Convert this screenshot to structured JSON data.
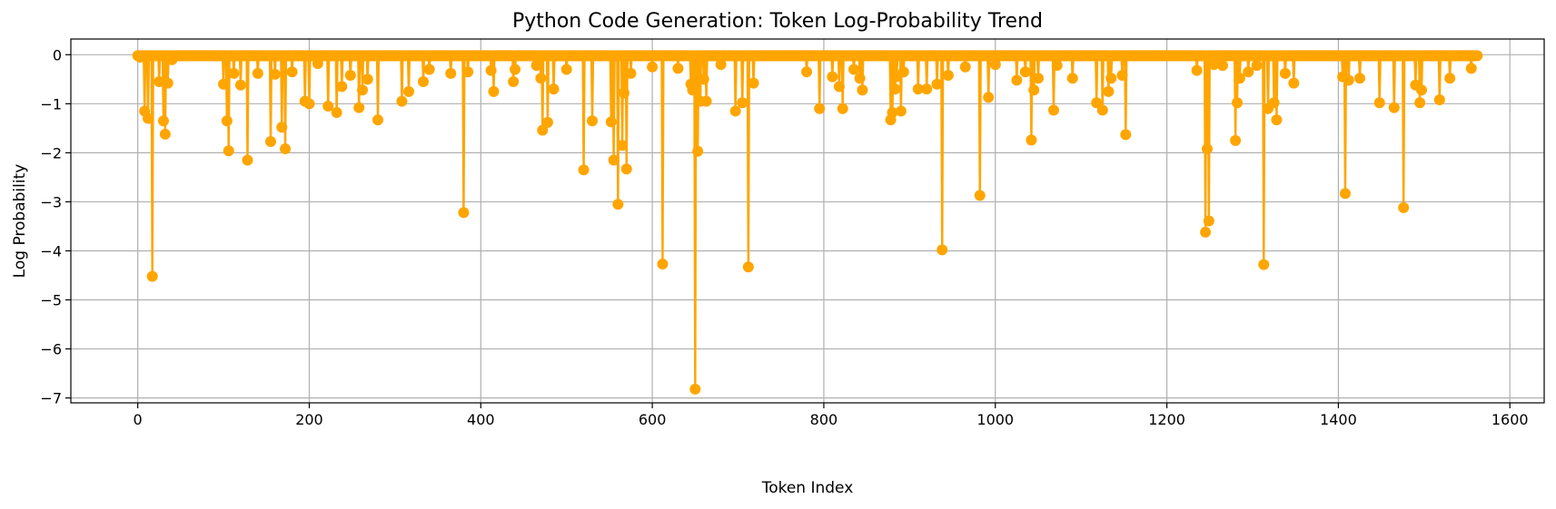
{
  "chart_data": {
    "type": "line",
    "title": "Python Code Generation: Token Log-Probability Trend",
    "xlabel": "Token Index",
    "ylabel": "Log Probability",
    "xlim": [
      -78,
      1640
    ],
    "ylim": [
      -7.1,
      0.32
    ],
    "xticks": [
      0,
      200,
      400,
      600,
      800,
      1000,
      1200,
      1400,
      1600
    ],
    "yticks": [
      0,
      -1,
      -2,
      -3,
      -4,
      -5,
      -6,
      -7
    ],
    "grid": true,
    "series": [
      {
        "color": "#ffa500",
        "marker": "circle",
        "n_points": 1563,
        "baseline": -0.02,
        "dips": [
          [
            3,
            -0.05
          ],
          [
            8,
            -1.15
          ],
          [
            12,
            -1.3
          ],
          [
            17,
            -4.52
          ],
          [
            25,
            -0.55
          ],
          [
            30,
            -1.35
          ],
          [
            32,
            -1.62
          ],
          [
            35,
            -0.58
          ],
          [
            40,
            -0.1
          ],
          [
            100,
            -0.6
          ],
          [
            104,
            -1.35
          ],
          [
            106,
            -1.96
          ],
          [
            112,
            -0.38
          ],
          [
            120,
            -0.62
          ],
          [
            128,
            -2.15
          ],
          [
            140,
            -0.38
          ],
          [
            155,
            -1.77
          ],
          [
            160,
            -0.4
          ],
          [
            168,
            -1.48
          ],
          [
            172,
            -1.92
          ],
          [
            180,
            -0.35
          ],
          [
            195,
            -0.95
          ],
          [
            200,
            -1.0
          ],
          [
            210,
            -0.18
          ],
          [
            222,
            -1.05
          ],
          [
            232,
            -1.18
          ],
          [
            238,
            -0.65
          ],
          [
            248,
            -0.42
          ],
          [
            258,
            -1.08
          ],
          [
            262,
            -0.72
          ],
          [
            268,
            -0.5
          ],
          [
            280,
            -1.33
          ],
          [
            308,
            -0.95
          ],
          [
            316,
            -0.75
          ],
          [
            333,
            -0.55
          ],
          [
            340,
            -0.3
          ],
          [
            365,
            -0.38
          ],
          [
            380,
            -3.22
          ],
          [
            385,
            -0.35
          ],
          [
            412,
            -0.32
          ],
          [
            415,
            -0.75
          ],
          [
            438,
            -0.55
          ],
          [
            440,
            -0.3
          ],
          [
            465,
            -0.22
          ],
          [
            470,
            -0.48
          ],
          [
            472,
            -1.54
          ],
          [
            478,
            -1.38
          ],
          [
            485,
            -0.7
          ],
          [
            500,
            -0.3
          ],
          [
            520,
            -2.35
          ],
          [
            530,
            -1.35
          ],
          [
            552,
            -1.37
          ],
          [
            555,
            -2.15
          ],
          [
            560,
            -3.05
          ],
          [
            565,
            -1.85
          ],
          [
            567,
            -0.78
          ],
          [
            570,
            -2.33
          ],
          [
            575,
            -0.38
          ],
          [
            600,
            -0.25
          ],
          [
            612,
            -4.27
          ],
          [
            630,
            -0.28
          ],
          [
            645,
            -0.6
          ],
          [
            647,
            -0.72
          ],
          [
            650,
            -6.82
          ],
          [
            653,
            -1.97
          ],
          [
            656,
            -0.95
          ],
          [
            660,
            -0.5
          ],
          [
            663,
            -0.95
          ],
          [
            680,
            -0.2
          ],
          [
            697,
            -1.15
          ],
          [
            705,
            -0.98
          ],
          [
            712,
            -4.33
          ],
          [
            718,
            -0.58
          ],
          [
            780,
            -0.35
          ],
          [
            795,
            -1.1
          ],
          [
            810,
            -0.45
          ],
          [
            818,
            -0.65
          ],
          [
            822,
            -1.1
          ],
          [
            835,
            -0.3
          ],
          [
            842,
            -0.48
          ],
          [
            845,
            -0.72
          ],
          [
            878,
            -1.33
          ],
          [
            880,
            -1.18
          ],
          [
            883,
            -0.7
          ],
          [
            885,
            -0.45
          ],
          [
            890,
            -1.15
          ],
          [
            893,
            -0.35
          ],
          [
            910,
            -0.7
          ],
          [
            920,
            -0.7
          ],
          [
            932,
            -0.6
          ],
          [
            938,
            -3.98
          ],
          [
            945,
            -0.42
          ],
          [
            965,
            -0.25
          ],
          [
            982,
            -2.87
          ],
          [
            992,
            -0.87
          ],
          [
            1000,
            -0.2
          ],
          [
            1025,
            -0.52
          ],
          [
            1035,
            -0.35
          ],
          [
            1042,
            -1.74
          ],
          [
            1045,
            -0.72
          ],
          [
            1050,
            -0.48
          ],
          [
            1068,
            -1.13
          ],
          [
            1072,
            -0.22
          ],
          [
            1090,
            -0.48
          ],
          [
            1118,
            -0.98
          ],
          [
            1125,
            -1.13
          ],
          [
            1132,
            -0.75
          ],
          [
            1135,
            -0.48
          ],
          [
            1148,
            -0.42
          ],
          [
            1152,
            -1.63
          ],
          [
            1235,
            -0.32
          ],
          [
            1245,
            -3.62
          ],
          [
            1247,
            -1.92
          ],
          [
            1249,
            -3.39
          ],
          [
            1255,
            -0.2
          ],
          [
            1265,
            -0.22
          ],
          [
            1280,
            -1.75
          ],
          [
            1282,
            -0.98
          ],
          [
            1285,
            -0.48
          ],
          [
            1295,
            -0.35
          ],
          [
            1305,
            -0.22
          ],
          [
            1313,
            -4.28
          ],
          [
            1318,
            -1.1
          ],
          [
            1325,
            -0.98
          ],
          [
            1328,
            -1.33
          ],
          [
            1338,
            -0.38
          ],
          [
            1348,
            -0.58
          ],
          [
            1405,
            -0.45
          ],
          [
            1408,
            -2.83
          ],
          [
            1412,
            -0.52
          ],
          [
            1425,
            -0.48
          ],
          [
            1448,
            -0.98
          ],
          [
            1465,
            -1.08
          ],
          [
            1476,
            -3.12
          ],
          [
            1490,
            -0.62
          ],
          [
            1495,
            -0.98
          ],
          [
            1497,
            -0.72
          ],
          [
            1518,
            -0.92
          ],
          [
            1530,
            -0.48
          ],
          [
            1555,
            -0.28
          ]
        ]
      }
    ]
  }
}
